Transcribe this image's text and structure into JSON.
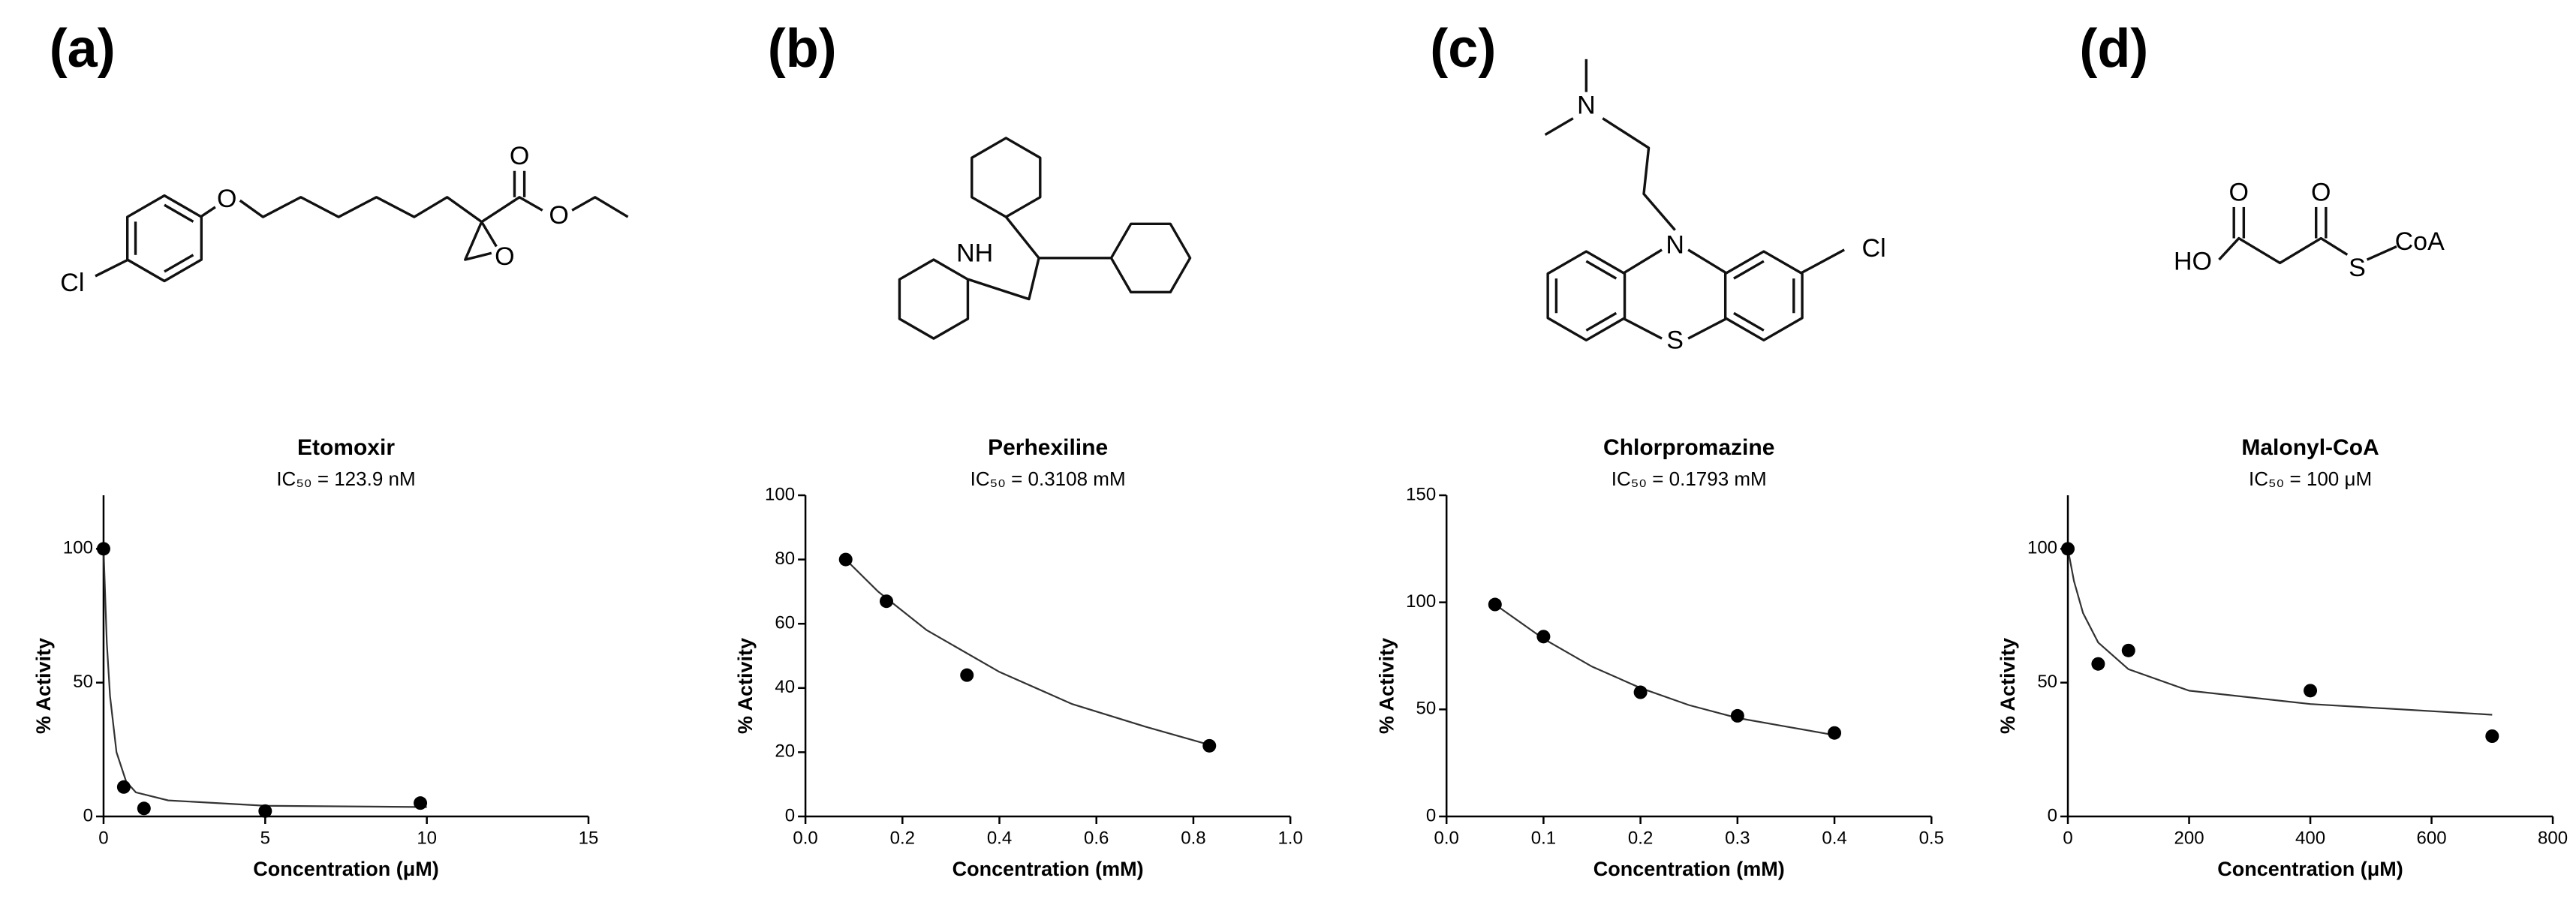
{
  "chart_data": [
    {
      "type": "scatter",
      "panel": "(a)",
      "title": "Etomoxir",
      "subtitle": "IC₅₀ = 123.9 nM",
      "xlabel": "Concentration (μM)",
      "ylabel": "% Activity",
      "atom_labels": [
        "Cl",
        "O",
        "O",
        "O",
        "O"
      ],
      "x": [
        0,
        0.625,
        1.25,
        5,
        9.8
      ],
      "values": [
        100,
        11,
        3,
        2,
        5
      ],
      "fit": {
        "x": [
          0,
          0.1,
          0.2,
          0.4,
          0.7,
          1,
          2,
          5,
          10
        ],
        "y": [
          100,
          65,
          45,
          24,
          13,
          9,
          6,
          4,
          3.5
        ]
      },
      "xlim": [
        0,
        15
      ],
      "xticks": [
        0,
        5,
        10,
        15
      ],
      "ylim": [
        0,
        120
      ],
      "yticks": [
        0,
        50,
        100
      ],
      "color": "#000000"
    },
    {
      "type": "scatter",
      "panel": "(b)",
      "title": "Perhexiline",
      "subtitle": "IC₅₀ = 0.3108 mM",
      "xlabel": "Concentration (mM)",
      "ylabel": "% Activity",
      "atom_labels": [
        "NH"
      ],
      "x": [
        0.083,
        0.167,
        0.333,
        0.833
      ],
      "values": [
        80,
        67,
        44,
        22
      ],
      "fit": {
        "x": [
          0.083,
          0.15,
          0.25,
          0.4,
          0.55,
          0.7,
          0.84
        ],
        "y": [
          80,
          70,
          58,
          45,
          35,
          28,
          22
        ]
      },
      "xlim": [
        0,
        1
      ],
      "xticks": [
        {
          "value": 0,
          "label": "0.0"
        },
        0.2,
        0.4,
        0.6,
        0.8,
        {
          "value": 1,
          "label": "1.0"
        }
      ],
      "ylim": [
        0,
        100
      ],
      "yticks": [
        0,
        20,
        40,
        60,
        80,
        100
      ],
      "color": "#000000"
    },
    {
      "type": "scatter",
      "panel": "(c)",
      "title": "Chlorpromazine",
      "subtitle": "IC₅₀ = 0.1793 mM",
      "xlabel": "Concentration (mM)",
      "ylabel": "% Activity",
      "atom_labels": [
        "N",
        "N",
        "S",
        "Cl"
      ],
      "x": [
        0.05,
        0.1,
        0.2,
        0.3,
        0.4
      ],
      "values": [
        99,
        84,
        58,
        47,
        39
      ],
      "fit": {
        "x": [
          0.05,
          0.1,
          0.15,
          0.2,
          0.25,
          0.3,
          0.35,
          0.4
        ],
        "y": [
          99,
          83,
          70,
          60,
          52,
          46,
          42,
          38
        ]
      },
      "xlim": [
        0,
        0.5
      ],
      "xticks": [
        {
          "value": 0,
          "label": "0.0"
        },
        0.1,
        0.2,
        0.3,
        0.4,
        0.5
      ],
      "ylim": [
        0,
        150
      ],
      "yticks": [
        0,
        50,
        100,
        150
      ],
      "color": "#000000"
    },
    {
      "type": "scatter",
      "panel": "(d)",
      "title": "Malonyl-CoA",
      "subtitle": "IC₅₀ = 100 μM",
      "xlabel": "Concentration (μM)",
      "ylabel": "% Activity",
      "atom_labels": [
        "HO",
        "O",
        "O",
        "S",
        "CoA"
      ],
      "x": [
        0,
        50,
        100,
        400,
        700
      ],
      "values": [
        100,
        57,
        62,
        47,
        30
      ],
      "fit": {
        "x": [
          0,
          10,
          25,
          50,
          100,
          200,
          400,
          700
        ],
        "y": [
          100,
          88,
          76,
          65,
          55,
          47,
          42,
          38
        ]
      },
      "xlim": [
        0,
        800
      ],
      "xticks": [
        0,
        200,
        400,
        600,
        800
      ],
      "ylim": [
        0,
        120
      ],
      "yticks": [
        0,
        50,
        100
      ],
      "color": "#000000"
    }
  ]
}
